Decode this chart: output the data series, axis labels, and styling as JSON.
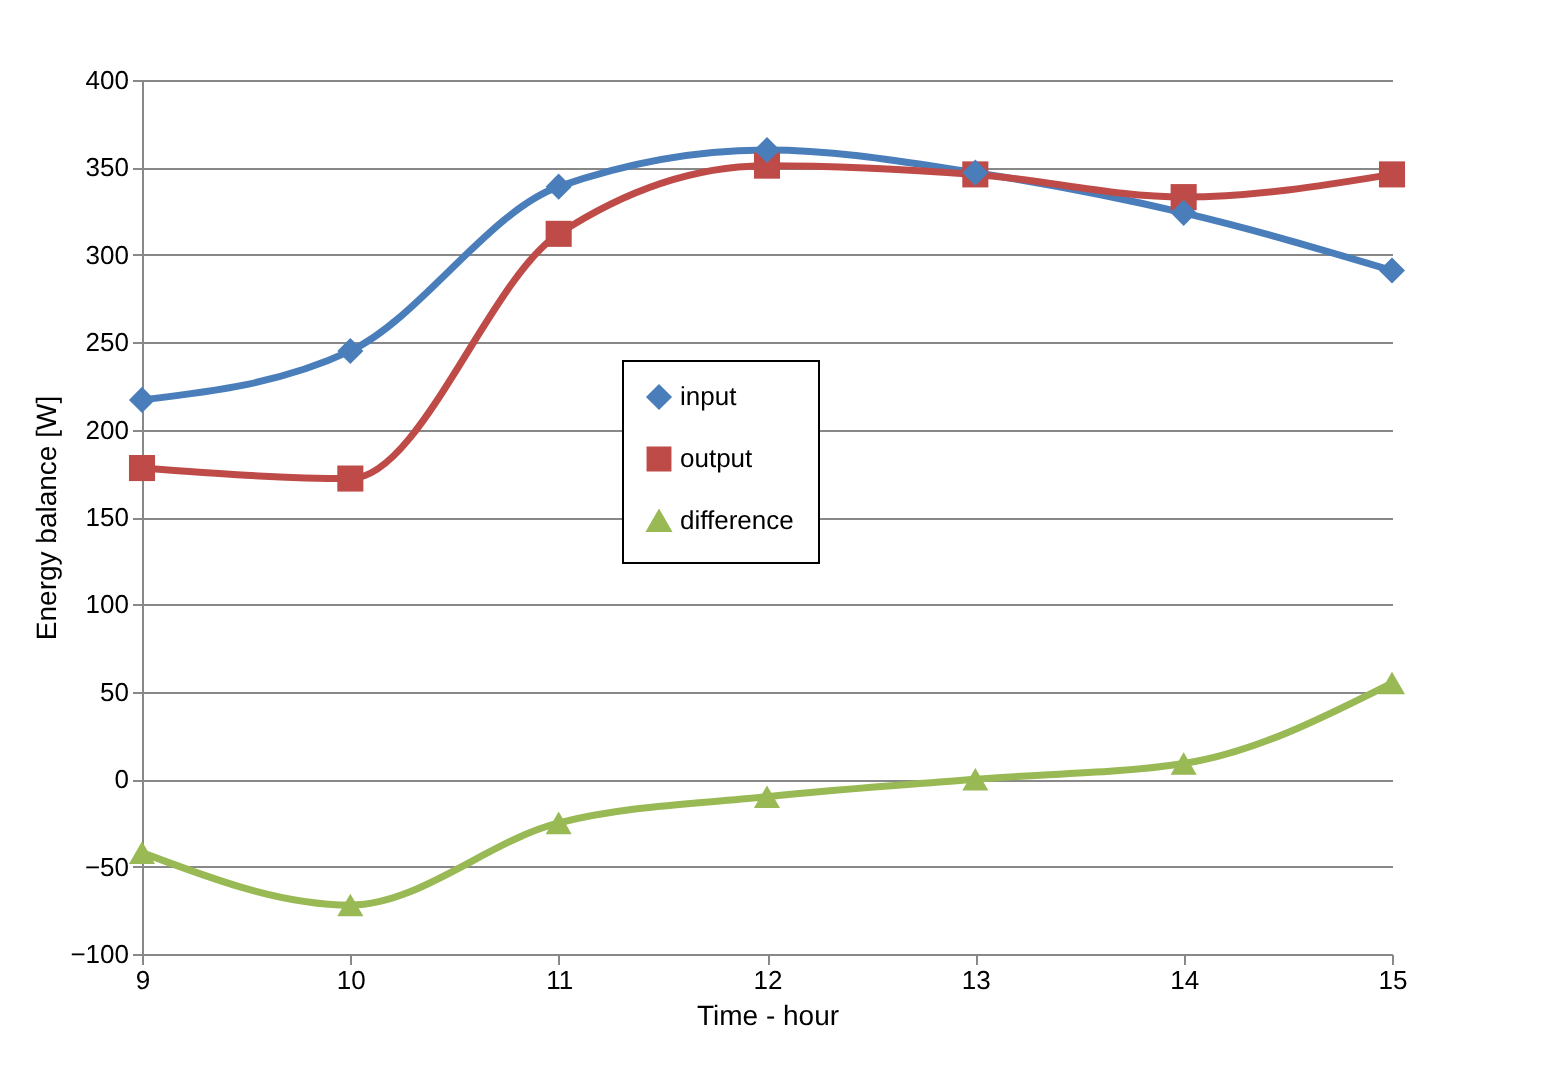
{
  "chart_data": {
    "type": "line",
    "xlabel": "Time - hour",
    "ylabel": "Energy balance [W]",
    "categories": [
      "9",
      "10",
      "11",
      "12",
      "13",
      "14",
      "15"
    ],
    "ylim": [
      -100,
      400
    ],
    "yticks": [
      -100,
      -50,
      0,
      50,
      100,
      150,
      200,
      250,
      300,
      350,
      400
    ],
    "grid": "y",
    "legend": "center",
    "line_style": "solid",
    "series": [
      {
        "name": "input",
        "color": "#4a7ebb",
        "marker": "diamond",
        "values": [
          217,
          245,
          339,
          360,
          347,
          324,
          291
        ]
      },
      {
        "name": "output",
        "color": "#be4b48",
        "marker": "square",
        "values": [
          178,
          172,
          312,
          351,
          346,
          333,
          346
        ]
      },
      {
        "name": "difference",
        "color": "#98b954",
        "marker": "triangle",
        "values": [
          -42,
          -72,
          -25,
          -10,
          0,
          9,
          55
        ]
      }
    ]
  }
}
